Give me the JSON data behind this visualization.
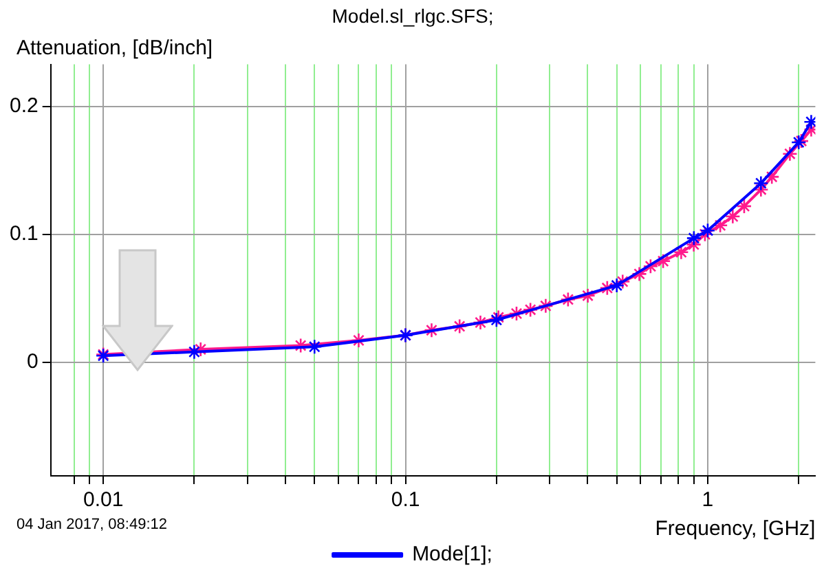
{
  "chart_data": {
    "type": "line",
    "title": "Model.sl_rlgc.SFS;",
    "xlabel": "Frequency, [GHz]",
    "ylabel": "Attenuation, [dB/inch]",
    "annotations": [
      "04 Jan 2017, 08:49:12"
    ],
    "log": "x",
    "grid": true,
    "legend": "bottom",
    "marker": "cross",
    "line_style": "solid",
    "xlim": [
      0.0067,
      2.27
    ],
    "ylim": [
      -0.089,
      0.233
    ],
    "xticks": [
      {
        "value": 0.008,
        "label": null
      },
      {
        "value": 0.009,
        "label": null
      },
      0.01,
      {
        "value": 0.02,
        "label": null
      },
      {
        "value": 0.03,
        "label": null
      },
      {
        "value": 0.04,
        "label": null
      },
      {
        "value": 0.05,
        "label": null
      },
      {
        "value": 0.06,
        "label": null
      },
      {
        "value": 0.07,
        "label": null
      },
      {
        "value": 0.08,
        "label": null
      },
      {
        "value": 0.09,
        "label": null
      },
      0.1,
      {
        "value": 0.2,
        "label": null
      },
      {
        "value": 0.3,
        "label": null
      },
      {
        "value": 0.4,
        "label": null
      },
      {
        "value": 0.5,
        "label": null
      },
      {
        "value": 0.6,
        "label": null
      },
      {
        "value": 0.7,
        "label": null
      },
      {
        "value": 0.8,
        "label": null
      },
      {
        "value": 0.9,
        "label": null
      },
      1,
      {
        "value": 2,
        "label": null
      }
    ],
    "yticks": [
      0,
      0.1,
      0.2
    ],
    "series": [
      {
        "name": "Mode[1];",
        "color": "#0000ff",
        "x": [
          0.01,
          0.02,
          0.05,
          0.1,
          0.2,
          0.5,
          0.9,
          1,
          1.5,
          2,
          2.2
        ],
        "values": [
          0.005,
          0.008,
          0.012,
          0.021,
          0.033,
          0.06,
          0.097,
          0.103,
          0.14,
          0.172,
          0.188
        ]
      },
      {
        "color": "#ff1a8c",
        "x": [
          0.01,
          0.021,
          0.045,
          0.07,
          0.1,
          0.122,
          0.151,
          0.177,
          0.203,
          0.233,
          0.259,
          0.291,
          0.345,
          0.401,
          0.465,
          0.523,
          0.594,
          0.647,
          0.712,
          0.817,
          0.899,
          0.979,
          1.1,
          1.21,
          1.32,
          1.5,
          1.63,
          1.87,
          2.04,
          2.2
        ],
        "values": [
          0.006,
          0.01,
          0.013,
          0.017,
          0.021,
          0.025,
          0.028,
          0.031,
          0.035,
          0.038,
          0.041,
          0.044,
          0.049,
          0.052,
          0.058,
          0.063,
          0.069,
          0.075,
          0.079,
          0.086,
          0.092,
          0.1,
          0.107,
          0.114,
          0.122,
          0.135,
          0.145,
          0.163,
          0.173,
          0.182
        ]
      }
    ]
  }
}
